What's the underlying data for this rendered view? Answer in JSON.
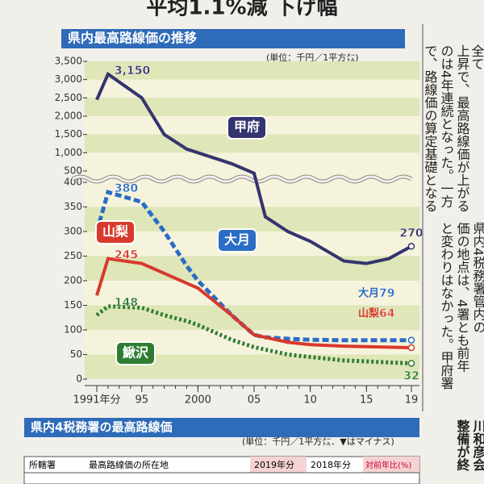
{
  "page": {
    "headline": "平均1.1%減 下げ幅",
    "column_top": [
      "全て",
      "上昇で、最高路線価が上がる",
      "のは4年連続となった。一方",
      "で、路線価の算定基礎となる"
    ],
    "column_bottom": [
      "県内4税務署管内の",
      "価の地点は、4署とも前年",
      "と変わりはなかった。甲府署"
    ],
    "column_foot": [
      "川和彦会",
      "整備が終"
    ],
    "table": {
      "title": "県内4税務署の最高路線価",
      "unit": "(単位：千円／1平方㍍．▼はマイナス)",
      "header": [
        "所轄署",
        "最高路線価の所在地",
        "2019年分",
        "2018年分",
        "対前年比(%)"
      ]
    }
  },
  "chart_data": {
    "type": "line",
    "title": "県内最高路線価の推移",
    "subtitle": "(単位：千円／1平方㍍)",
    "x": [
      1991,
      1992,
      1995,
      1997,
      1999,
      2000,
      2003,
      2005,
      2006,
      2008,
      2010,
      2013,
      2015,
      2017,
      2019
    ],
    "xlim": [
      1991,
      2019
    ],
    "xticks": [
      {
        "value": 1991,
        "label": "1991年分"
      },
      {
        "value": 1995,
        "label": "95"
      },
      2000,
      {
        "value": 2005,
        "label": "05"
      },
      {
        "value": 2010,
        "label": "10"
      },
      {
        "value": 2015,
        "label": "15"
      },
      {
        "value": 2019,
        "label": "19"
      }
    ],
    "ylim": [
      0,
      3500
    ],
    "lower_ylim": [
      0,
      400
    ],
    "upper_ylim": [
      500,
      3500
    ],
    "yticks": [
      0,
      50,
      100,
      150,
      200,
      250,
      300,
      350,
      400,
      500,
      {
        "value": 1000,
        "label": "1,000"
      },
      {
        "value": 1500,
        "label": "1,500"
      },
      {
        "value": 2000,
        "label": "2,000"
      },
      {
        "value": 2500,
        "label": "2,500"
      },
      {
        "value": 3000,
        "label": "3,000"
      },
      {
        "value": 3500,
        "label": "3,500"
      }
    ],
    "series": [
      {
        "name": "甲府",
        "color": "#34346e",
        "style": "solid",
        "values": [
          2450,
          3150,
          2500,
          1500,
          1100,
          1000,
          700,
          480,
          330,
          300,
          280,
          240,
          235,
          245,
          270
        ],
        "value_labels": [
          null,
          "3,150",
          null,
          null,
          null,
          null,
          null,
          null,
          null,
          null,
          null,
          null,
          null,
          null,
          "270"
        ]
      },
      {
        "name": "大月",
        "color": "#2a6cc6",
        "style": "dashed",
        "values": [
          300,
          380,
          360,
          300,
          230,
          200,
          130,
          90,
          85,
          82,
          80,
          79,
          79,
          79,
          79
        ],
        "value_labels": [
          null,
          "380",
          null,
          null,
          null,
          null,
          null,
          null,
          null,
          null,
          null,
          null,
          null,
          null,
          "79"
        ]
      },
      {
        "name": "山梨",
        "color": "#d8392d",
        "style": "solid",
        "values": [
          170,
          245,
          235,
          215,
          195,
          185,
          130,
          90,
          85,
          75,
          70,
          67,
          66,
          65,
          64
        ],
        "value_labels": [
          null,
          "245",
          null,
          null,
          null,
          null,
          null,
          null,
          null,
          null,
          null,
          null,
          null,
          null,
          "64"
        ]
      },
      {
        "name": "鰍沢",
        "color": "#2f7d32",
        "style": "dotted",
        "values": [
          130,
          148,
          145,
          130,
          118,
          110,
          80,
          65,
          60,
          50,
          45,
          38,
          36,
          34,
          32
        ],
        "value_labels": [
          null,
          "148",
          null,
          null,
          null,
          null,
          null,
          null,
          null,
          null,
          null,
          null,
          null,
          null,
          "32"
        ]
      }
    ]
  }
}
